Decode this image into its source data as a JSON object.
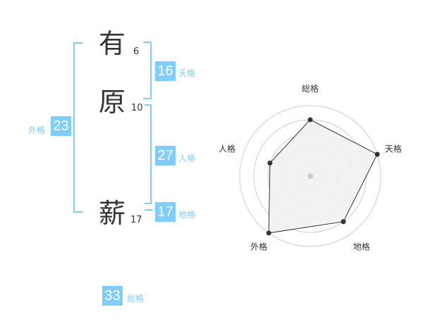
{
  "name": {
    "characters": [
      {
        "char": "有",
        "strokes": "6"
      },
      {
        "char": "原",
        "strokes": "10"
      },
      {
        "char": "薪",
        "strokes": "17"
      }
    ]
  },
  "scores": {
    "tenkaku": {
      "label": "天格",
      "value": "16"
    },
    "jinkaku": {
      "label": "人格",
      "value": "27"
    },
    "chikaku": {
      "label": "地格",
      "value": "17"
    },
    "gaikaku": {
      "label": "外格",
      "value": "23"
    },
    "soukaku": {
      "label": "総格",
      "value": "33"
    }
  },
  "colors": {
    "accent": "#7fcdfb",
    "polygon_fill": "#f0f0f0",
    "ring": "#cccccc",
    "point": "#333333"
  },
  "chart_data": {
    "type": "radar",
    "axes": [
      "総格",
      "天格",
      "地格",
      "外格",
      "人格"
    ],
    "values": [
      4,
      5,
      4,
      5,
      3
    ],
    "range": [
      0,
      5
    ],
    "rings": 5
  }
}
